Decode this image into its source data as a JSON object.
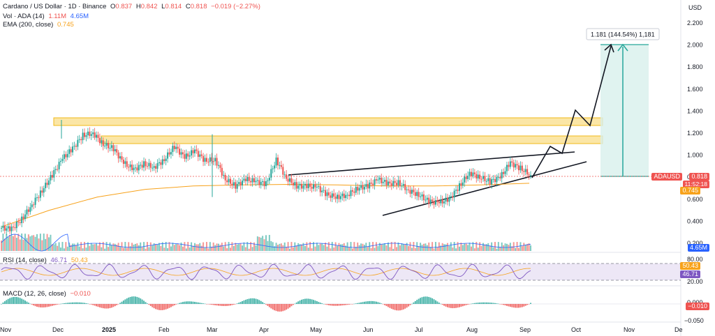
{
  "header": {
    "symbol": "Cardano / US Dollar · 1D · Binance",
    "open_label": "O",
    "open": "0.837",
    "high_label": "H",
    "high": "0.842",
    "low_label": "L",
    "low": "0.814",
    "close_label": "C",
    "close": "0.818",
    "change": "−0.019 (−2.27%)",
    "vol_label": "Vol · ADA (14)",
    "vol_a": "1.11M",
    "vol_b": "4.65M",
    "ema_label": "EMA (200, close)",
    "ema_value": "0.745"
  },
  "colors": {
    "up": "#26a69a",
    "down": "#ef5350",
    "ema": "#f7a21b",
    "rsi": "#7e57c2",
    "vol_ma": "#2962ff",
    "zone": "#f9c542",
    "target": "#b2dfdb"
  },
  "price_scale": {
    "currency": "USD",
    "ticks": [
      "2.200",
      "2.000",
      "1.800",
      "1.600",
      "1.400",
      "1.200",
      "1.000",
      "0.800",
      "0.600",
      "0.400",
      "0.200"
    ]
  },
  "labels": {
    "symbol_tag": "ADAUSD",
    "last_price": "0.818",
    "countdown": "11:52:18",
    "ema_tag": "0.745",
    "vol_tag": "4.65M",
    "rsi_tag_a": "50.43",
    "rsi_tag_b": "46.71",
    "macd_tag": "−0.010",
    "target_box": "1.181 (144.54%) 1,181"
  },
  "rsi": {
    "label": "RSI (14, close)",
    "value_a": "46.71",
    "value_b": "50.43",
    "levels": [
      "80.00",
      "20.00"
    ]
  },
  "macd": {
    "label": "MACD (12, 26, close)",
    "value": "−0.010",
    "levels": [
      "0.000",
      "−0.050"
    ]
  },
  "time_axis": [
    "Nov",
    "Dec",
    "2025",
    "Feb",
    "Mar",
    "Apr",
    "May",
    "Jun",
    "Jul",
    "Aug",
    "Sep",
    "Oct",
    "Nov",
    "De"
  ],
  "chart_data": {
    "type": "candlestick",
    "series": "ADAUSD daily close (approx.)",
    "ylim": [
      0.2,
      2.2
    ],
    "close_points": [
      [
        "Nov",
        0.34
      ],
      [
        "Nov",
        0.33
      ],
      [
        "Nov",
        0.42
      ],
      [
        "Nov",
        0.55
      ],
      [
        "Nov",
        0.68
      ],
      [
        "Nov",
        0.82
      ],
      [
        "Nov",
        0.97
      ],
      [
        "Nov",
        1.06
      ],
      [
        "Dec",
        1.18
      ],
      [
        "Dec",
        1.2
      ],
      [
        "Dec",
        1.1
      ],
      [
        "Dec",
        1.06
      ],
      [
        "Dec",
        0.93
      ],
      [
        "Dec",
        0.87
      ],
      [
        "Dec",
        0.92
      ],
      [
        "Dec",
        0.89
      ],
      [
        "2025",
        0.96
      ],
      [
        "2025",
        1.08
      ],
      [
        "2025",
        0.98
      ],
      [
        "2025",
        1.04
      ],
      [
        "2025",
        0.95
      ],
      [
        "2025",
        0.96
      ],
      [
        "Feb",
        0.78
      ],
      [
        "Feb",
        0.72
      ],
      [
        "Feb",
        0.78
      ],
      [
        "Feb",
        0.76
      ],
      [
        "Feb",
        0.74
      ],
      [
        "Mar",
        0.96
      ],
      [
        "Mar",
        0.79
      ],
      [
        "Mar",
        0.72
      ],
      [
        "Mar",
        0.72
      ],
      [
        "Mar",
        0.71
      ],
      [
        "Apr",
        0.64
      ],
      [
        "Apr",
        0.62
      ],
      [
        "Apr",
        0.64
      ],
      [
        "Apr",
        0.7
      ],
      [
        "May",
        0.72
      ],
      [
        "May",
        0.78
      ],
      [
        "May",
        0.74
      ],
      [
        "May",
        0.75
      ],
      [
        "Jun",
        0.68
      ],
      [
        "Jun",
        0.64
      ],
      [
        "Jun",
        0.58
      ],
      [
        "Jun",
        0.57
      ],
      [
        "Jul",
        0.6
      ],
      [
        "Jul",
        0.72
      ],
      [
        "Jul",
        0.84
      ],
      [
        "Jul",
        0.8
      ],
      [
        "Aug",
        0.76
      ],
      [
        "Aug",
        0.8
      ],
      [
        "Aug",
        0.93
      ],
      [
        "Aug",
        0.88
      ],
      [
        "Sep",
        0.818
      ]
    ],
    "ema200": [
      0.35,
      0.5,
      0.62,
      0.69,
      0.72,
      0.73,
      0.735,
      0.73,
      0.72,
      0.72,
      0.73,
      0.745
    ],
    "target": 2.0,
    "resistance_zones": [
      [
        1.28,
        1.34
      ],
      [
        1.12,
        1.19
      ]
    ],
    "projection_path": [
      0.818,
      1.0,
      0.94,
      1.4,
      1.26,
      2.0
    ]
  }
}
